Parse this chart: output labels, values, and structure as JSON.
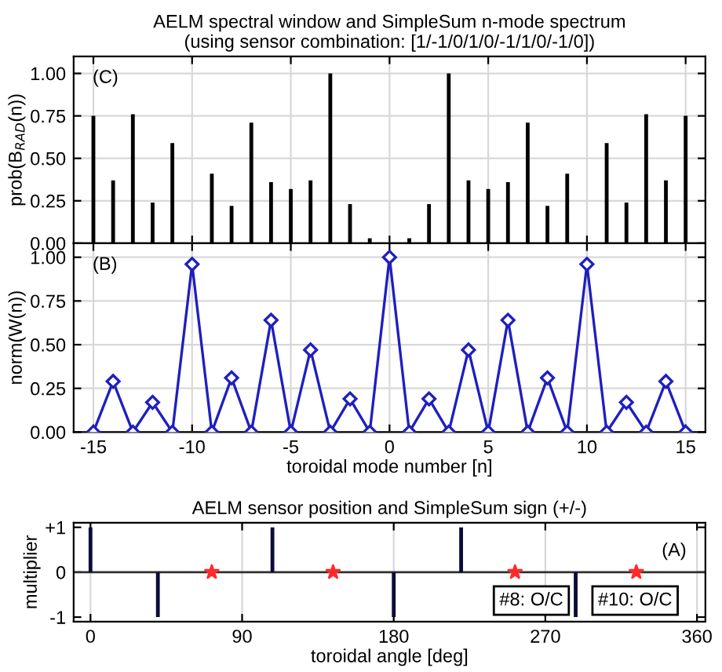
{
  "chart_data": [
    {
      "type": "bar",
      "title": "AELM spectral window and SimpleSum n-mode spectrum\n(using sensor combination: [1/-1/0/1/0/-1/1/0/-1/0])",
      "ylabel": "prob(B$_{RAD}$(n))",
      "annotations": [
        "(C)"
      ],
      "x": [
        -15,
        -14,
        -13,
        -12,
        -11,
        -10,
        -9,
        -8,
        -7,
        -6,
        -5,
        -4,
        -3,
        -2,
        -1,
        0,
        1,
        2,
        3,
        4,
        5,
        6,
        7,
        8,
        9,
        10,
        11,
        12,
        13,
        14,
        15
      ],
      "series": [
        {
          "color": "#000000",
          "values": [
            0.75,
            0.37,
            0.76,
            0.24,
            0.59,
            0,
            0.41,
            0.22,
            0.71,
            0.36,
            0.32,
            0.37,
            1.0,
            0.23,
            0.03,
            0,
            0.03,
            0.23,
            1.0,
            0.37,
            0.32,
            0.36,
            0.71,
            0.22,
            0.41,
            0,
            0.59,
            0.24,
            0.76,
            0.37,
            0.75
          ]
        }
      ],
      "xlim": [
        -16,
        16
      ],
      "xticks": [
        -15,
        -10,
        -5,
        0,
        5,
        10,
        15
      ],
      "ylim": [
        0,
        1.1
      ],
      "yticks": [
        {
          "value": 0,
          "label": "0.00"
        },
        {
          "value": 0.25,
          "label": "0.25"
        },
        {
          "value": 0.5,
          "label": "0.50"
        },
        {
          "value": 0.75,
          "label": "0.75"
        },
        {
          "value": 1,
          "label": "1.00"
        }
      ],
      "grid": true,
      "tick_labels": "y"
    },
    {
      "type": "line",
      "xlabel": "toroidal mode number [n]",
      "ylabel": "norm(W(n))",
      "annotations": [
        "(B)"
      ],
      "marker": "diamond",
      "x": [
        -15,
        -14,
        -13,
        -12,
        -11,
        -10,
        -9,
        -8,
        -7,
        -6,
        -5,
        -4,
        -3,
        -2,
        -1,
        0,
        1,
        2,
        3,
        4,
        5,
        6,
        7,
        8,
        9,
        10,
        11,
        12,
        13,
        14,
        15
      ],
      "series": [
        {
          "color": "#1f1fbf",
          "values": [
            0,
            0.29,
            0,
            0.17,
            0,
            0.96,
            0,
            0.31,
            0,
            0.64,
            0,
            0.47,
            0,
            0.19,
            0,
            1.0,
            0,
            0.19,
            0,
            0.47,
            0,
            0.64,
            0,
            0.31,
            0,
            0.96,
            0,
            0.17,
            0,
            0.29,
            0
          ]
        }
      ],
      "xlim": [
        -16,
        16
      ],
      "xticks": [
        -15,
        -10,
        -5,
        0,
        5,
        10,
        15
      ],
      "ylim": [
        0,
        1.08
      ],
      "yticks": [
        {
          "value": 0,
          "label": "0.00"
        },
        {
          "value": 0.25,
          "label": "0.25"
        },
        {
          "value": 0.5,
          "label": "0.50"
        },
        {
          "value": 0.75,
          "label": "0.75"
        },
        {
          "value": 1,
          "label": "1.00"
        }
      ],
      "grid": true
    },
    {
      "type": "bar",
      "title": "AELM sensor position and SimpleSum sign (+/-)",
      "xlabel": "toroidal angle [deg]",
      "ylabel": "multiplier",
      "annotations": [
        "(A)",
        "#8: O/C",
        "#10: O/C"
      ],
      "series": [
        {
          "type": "bar",
          "color": "#0b0b3b",
          "x": [
            0,
            40,
            108,
            180,
            220,
            288
          ],
          "values": [
            1,
            -1,
            1,
            -1,
            1,
            -1
          ]
        },
        {
          "type": "scatter",
          "color": "#ff2a2a",
          "marker": "star",
          "x": [
            72,
            144,
            252,
            324
          ],
          "values": [
            0,
            0,
            0,
            0
          ]
        }
      ],
      "ref_lines": [
        {
          "axis": "y",
          "value": 0,
          "color": "#303030"
        }
      ],
      "xlim": [
        -10,
        365
      ],
      "xticks": [
        0,
        90,
        180,
        270,
        360
      ],
      "ylim": [
        -1.1,
        1.1
      ],
      "yticks": [
        -1,
        0,
        {
          "value": 1,
          "label": "+1"
        }
      ],
      "grid": "x"
    }
  ]
}
